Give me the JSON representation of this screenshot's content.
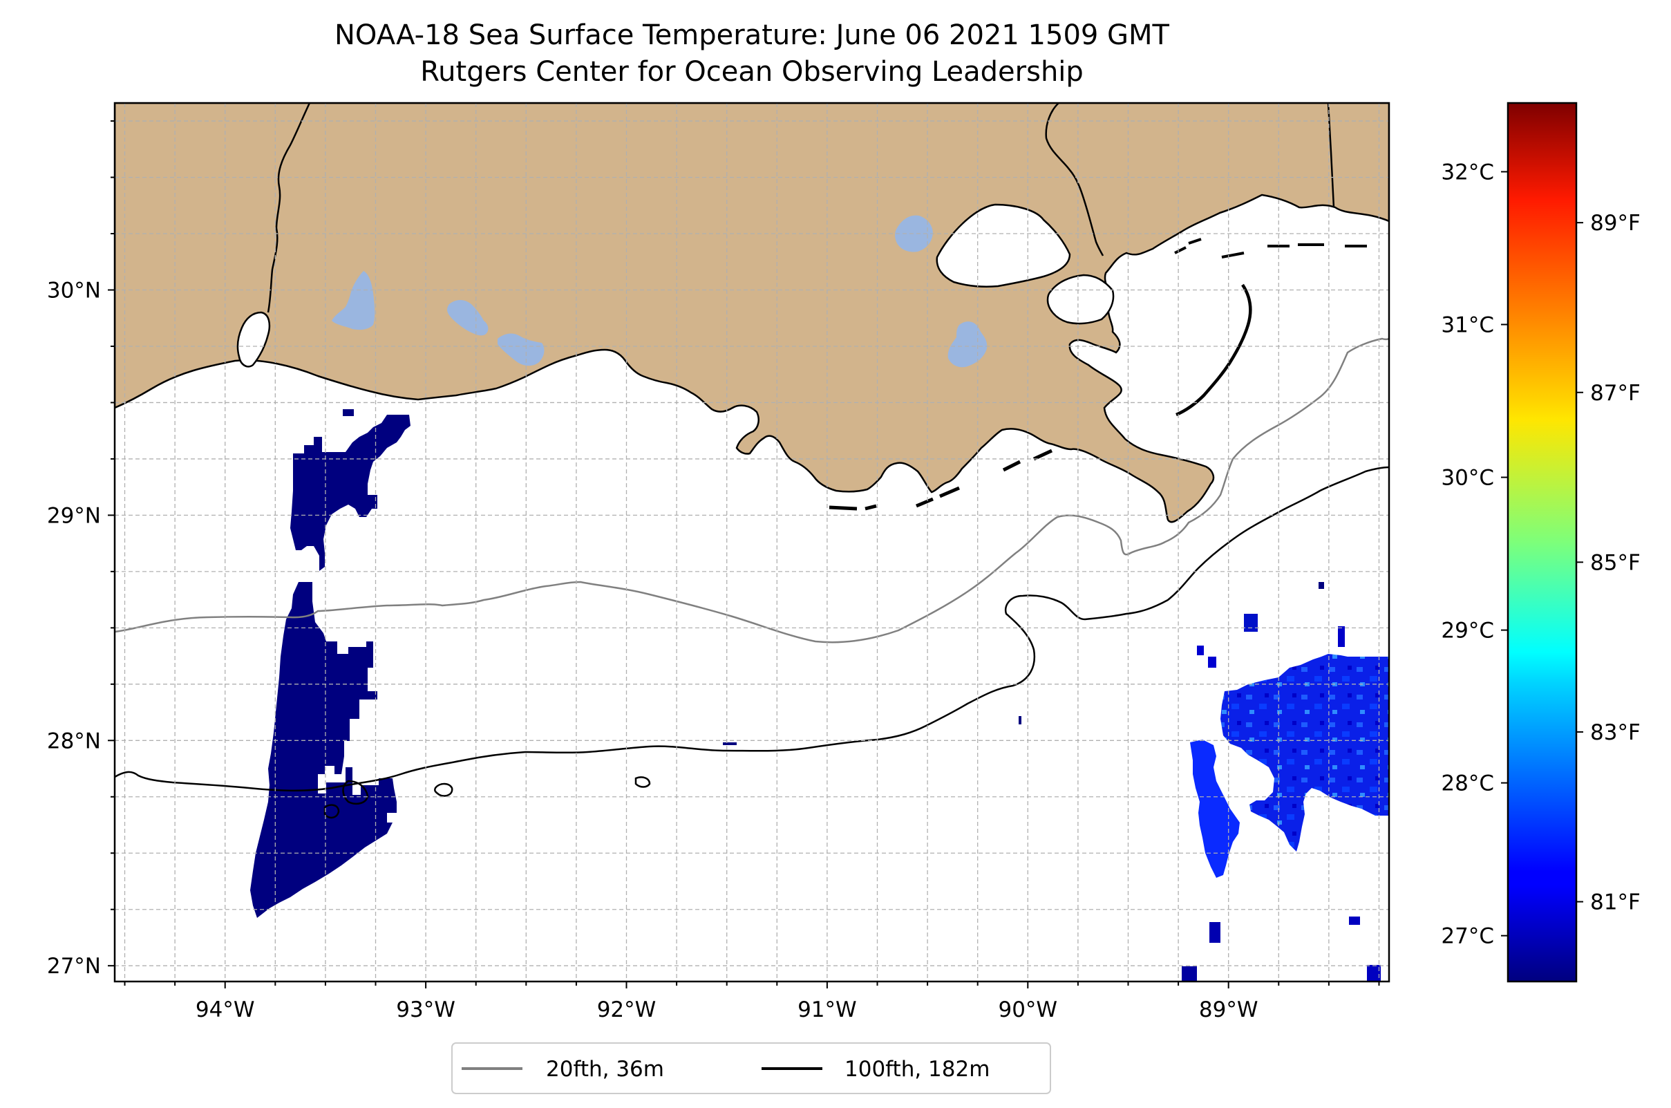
{
  "title": {
    "line1": "NOAA-18 Sea Surface Temperature: June 06 2021 1509 GMT",
    "line2": "Rutgers Center for Ocean Observing Leadership"
  },
  "map": {
    "lon_range": [
      -94.55,
      -88.2
    ],
    "lat_range": [
      26.93,
      30.83
    ],
    "longitude_ticks": [
      {
        "value": -94,
        "label": "94°W"
      },
      {
        "value": -93,
        "label": "93°W"
      },
      {
        "value": -92,
        "label": "92°W"
      },
      {
        "value": -91,
        "label": "91°W"
      },
      {
        "value": -90,
        "label": "90°W"
      },
      {
        "value": -89,
        "label": "89°W"
      }
    ],
    "latitude_ticks": [
      {
        "value": 27,
        "label": "27°N"
      },
      {
        "value": 28,
        "label": "28°N"
      },
      {
        "value": 29,
        "label": "29°N"
      },
      {
        "value": 30,
        "label": "30°N"
      }
    ],
    "grid": true,
    "land_color": "#d2b48c",
    "lake_color": "#9ab6e0",
    "no_data_color": "#ffffff",
    "isobaths": [
      {
        "label": "20fth, 36m",
        "color": "#808080"
      },
      {
        "label": "100fth, 182m",
        "color": "#000000"
      }
    ],
    "legend_position": "bottom-center"
  },
  "colorbar": {
    "colormap": "jet",
    "range_c": [
      26.7,
      32.45
    ],
    "celsius_ticks": [
      {
        "value": 27,
        "label": "27°C"
      },
      {
        "value": 28,
        "label": "28°C"
      },
      {
        "value": 29,
        "label": "29°C"
      },
      {
        "value": 30,
        "label": "30°C"
      },
      {
        "value": 31,
        "label": "31°C"
      },
      {
        "value": 32,
        "label": "32°C"
      }
    ],
    "fahrenheit_ticks": [
      {
        "value": 81,
        "label": "81°F"
      },
      {
        "value": 83,
        "label": "83°F"
      },
      {
        "value": 85,
        "label": "85°F"
      },
      {
        "value": 87,
        "label": "87°F"
      },
      {
        "value": 89,
        "label": "89°F"
      }
    ]
  }
}
